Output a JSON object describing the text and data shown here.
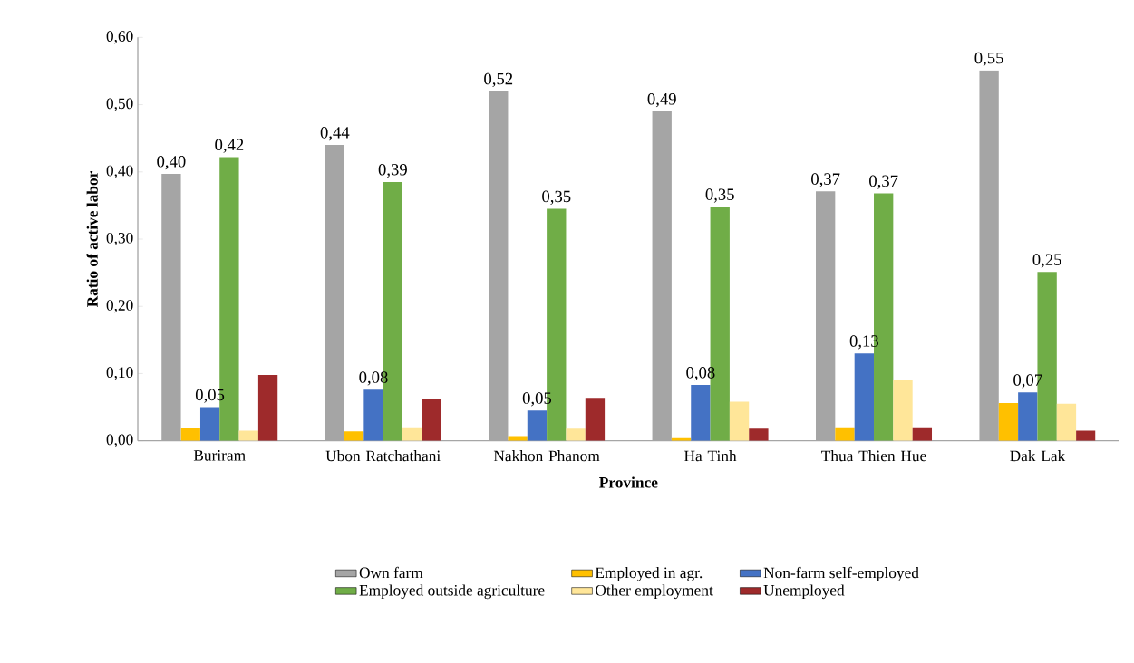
{
  "chart_data": {
    "type": "bar",
    "xlabel": "Province",
    "ylabel": "Ratio of active labor",
    "categories": [
      "Buriram",
      "Ubon Ratchathani",
      "Nakhon Phanom",
      "Ha Tinh",
      "Thua Thien Hue",
      "Dak Lak"
    ],
    "ylim": [
      0,
      0.6
    ],
    "yticks": [
      {
        "value": 0,
        "label": "0,00"
      },
      {
        "value": 0.1,
        "label": "0,10"
      },
      {
        "value": 0.2,
        "label": "0,20"
      },
      {
        "value": 0.3,
        "label": "0,30"
      },
      {
        "value": 0.4,
        "label": "0,40"
      },
      {
        "value": 0.5,
        "label": "0,50"
      },
      {
        "value": 0.6,
        "label": "0,60"
      }
    ],
    "grid": false,
    "legend": "bottom",
    "series": [
      {
        "name": "Own farm",
        "color": "#a5a5a5",
        "values": [
          0.397,
          0.44,
          0.52,
          0.49,
          0.371,
          0.551
        ],
        "value_labels": [
          "0,40",
          "0,44",
          "0,52",
          "0,49",
          "0,37",
          "0,55"
        ]
      },
      {
        "name": "Employed in agr.",
        "color": "#ffc000",
        "values": [
          0.019,
          0.014,
          0.007,
          0.004,
          0.02,
          0.056
        ]
      },
      {
        "name": "Non-farm self-employed",
        "color": "#4472c4",
        "values": [
          0.05,
          0.076,
          0.045,
          0.083,
          0.13,
          0.072
        ],
        "value_labels": [
          "0,05",
          "0,08",
          "0,05",
          "0,08",
          "0,13",
          "0,07"
        ]
      },
      {
        "name": "Employed outside agriculture",
        "color": "#70ad47",
        "values": [
          0.422,
          0.385,
          0.345,
          0.348,
          0.368,
          0.251
        ],
        "value_labels": [
          "0,42",
          "0,39",
          "0,35",
          "0,35",
          "0,37",
          "0,25"
        ]
      },
      {
        "name": "Other employment",
        "color": "#ffe699",
        "values": [
          0.015,
          0.02,
          0.018,
          0.058,
          0.091,
          0.055
        ]
      },
      {
        "name": "Unemployed",
        "color": "#9e2a2b",
        "values": [
          0.098,
          0.063,
          0.064,
          0.018,
          0.02,
          0.015
        ]
      }
    ]
  }
}
